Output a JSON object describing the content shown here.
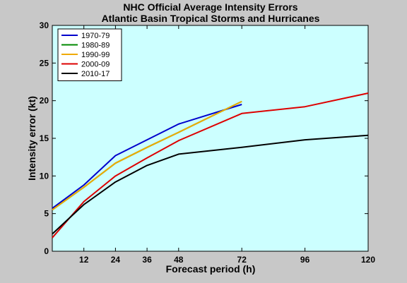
{
  "chart_data": {
    "type": "line",
    "title": "NHC Official Average Intensity Errors",
    "subtitle": "Atlantic Basin Tropical Storms and Hurricanes",
    "xlabel": "Forecast period (h)",
    "ylabel": "Intensity error (kt)",
    "xlim": [
      0,
      120
    ],
    "ylim": [
      0,
      30
    ],
    "xticks": [
      12,
      24,
      36,
      48,
      72,
      96,
      120
    ],
    "yticks": [
      0,
      5,
      10,
      15,
      20,
      25,
      30
    ],
    "grid": false,
    "legend_position": "top-left",
    "plot_background": "#ccffff",
    "figure_background": "#c8c8c8",
    "series": [
      {
        "name": "1970-79",
        "color": "#0000cc",
        "x": [
          0,
          12,
          24,
          36,
          48,
          72
        ],
        "y": [
          5.7,
          8.8,
          12.7,
          14.8,
          16.9,
          19.5
        ]
      },
      {
        "name": "1980-89",
        "color": "#008800",
        "x": [
          0,
          12,
          24,
          36,
          48,
          72
        ],
        "y": [
          5.5,
          8.5,
          11.7,
          13.8,
          15.8,
          19.9
        ]
      },
      {
        "name": "1990-99",
        "color": "#f0aa00",
        "x": [
          0,
          12,
          24,
          36,
          48,
          72
        ],
        "y": [
          5.5,
          8.5,
          11.7,
          13.8,
          15.8,
          19.9
        ]
      },
      {
        "name": "2000-09",
        "color": "#dd0000",
        "x": [
          0,
          12,
          24,
          36,
          48,
          72,
          96,
          120
        ],
        "y": [
          1.8,
          6.6,
          10.0,
          12.4,
          14.7,
          18.3,
          19.2,
          21.0
        ]
      },
      {
        "name": "2010-17",
        "color": "#000000",
        "x": [
          0,
          12,
          24,
          36,
          48,
          72,
          96,
          120
        ],
        "y": [
          2.3,
          6.2,
          9.2,
          11.4,
          12.9,
          13.8,
          14.8,
          15.4
        ]
      }
    ]
  }
}
